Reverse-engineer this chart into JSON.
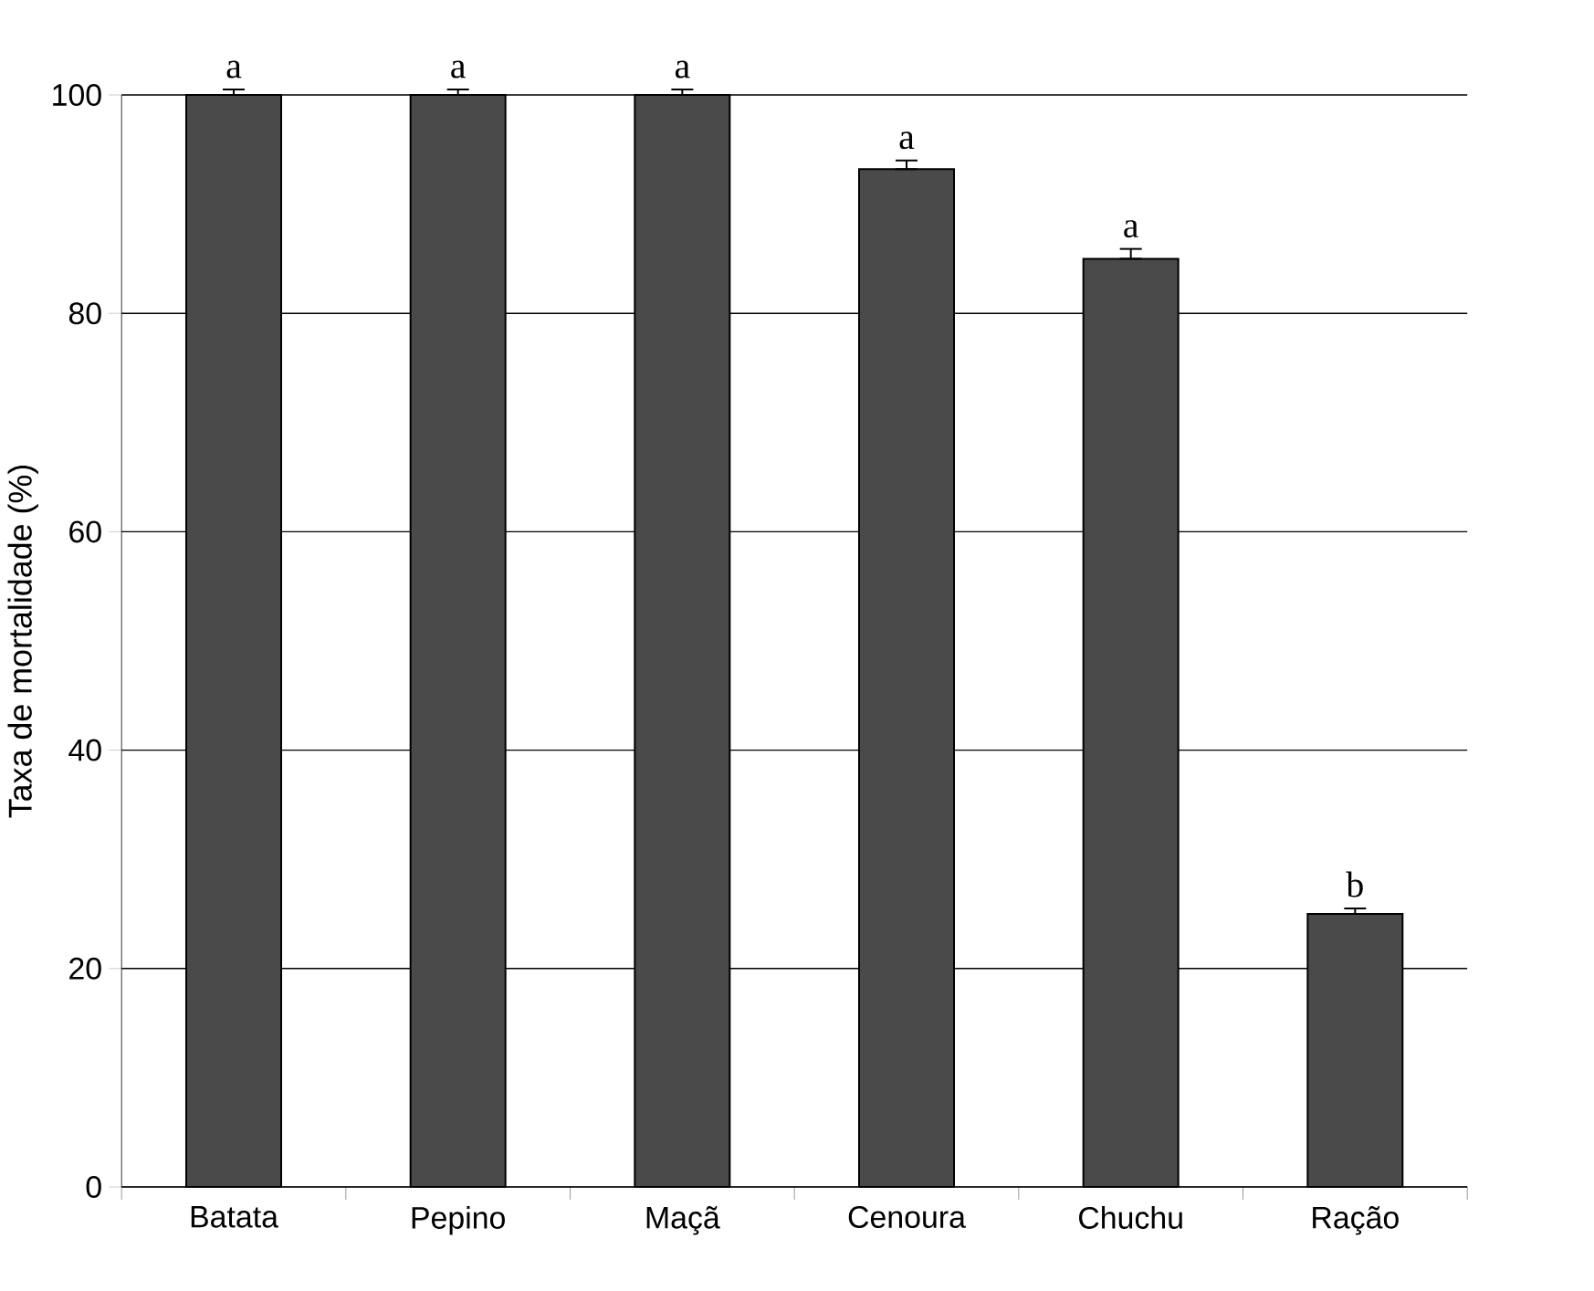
{
  "chart_data": {
    "type": "bar",
    "ylabel": "Taxa de mortalidade (%)",
    "categories": [
      "Batata",
      "Pepino",
      "Maçã",
      "Cenoura",
      "Chuchu",
      "Ração"
    ],
    "values": [
      100,
      100,
      100,
      93.2,
      85,
      25
    ],
    "errors": [
      [
        100,
        100.5
      ],
      [
        100,
        100.5
      ],
      [
        100,
        100.5
      ],
      [
        93.2,
        94
      ],
      [
        85,
        85.9
      ],
      [
        25,
        25.5
      ]
    ],
    "color": "#4a4a4a",
    "ylim": [
      0,
      100
    ],
    "yticks": [
      0,
      20,
      40,
      60,
      80,
      100
    ],
    "grid": "y",
    "annotations": [
      {
        "text": "a",
        "x": "Batata",
        "y": 100
      },
      {
        "text": "a",
        "x": "Pepino",
        "y": 100
      },
      {
        "text": "a",
        "x": "Maçã",
        "y": 100
      },
      {
        "text": "a",
        "x": "Cenoura",
        "y": 93.2
      },
      {
        "text": "a",
        "x": "Chuchu",
        "y": 85
      },
      {
        "text": "b",
        "x": "Ração",
        "y": 25
      }
    ]
  }
}
